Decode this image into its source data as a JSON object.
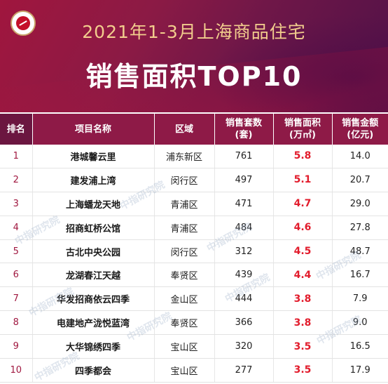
{
  "header": {
    "subtitle": "2021年1-3月上海商品住宅",
    "title": "销售面积TOP10"
  },
  "watermark": "中指研究院",
  "table": {
    "columns": {
      "rank": "排名",
      "project": "项目名称",
      "district": "区域",
      "units_line1": "销售套数",
      "units_line2": "(套)",
      "area_line1": "销售面积",
      "area_line2": "(万㎡)",
      "amount_line1": "销售金额",
      "amount_line2": "(亿元)"
    },
    "rows": [
      {
        "rank": "1",
        "project": "港城馨云里",
        "district": "浦东新区",
        "units": "761",
        "area": "5.8",
        "amount": "14.0"
      },
      {
        "rank": "2",
        "project": "建发浦上湾",
        "district": "闵行区",
        "units": "497",
        "area": "5.1",
        "amount": "20.7"
      },
      {
        "rank": "3",
        "project": "上海蟠龙天地",
        "district": "青浦区",
        "units": "471",
        "area": "4.7",
        "amount": "29.0"
      },
      {
        "rank": "4",
        "project": "招商虹桥公馆",
        "district": "青浦区",
        "units": "484",
        "area": "4.6",
        "amount": "27.8"
      },
      {
        "rank": "5",
        "project": "古北中央公园",
        "district": "闵行区",
        "units": "312",
        "area": "4.5",
        "amount": "48.7"
      },
      {
        "rank": "6",
        "project": "龙湖春江天越",
        "district": "奉贤区",
        "units": "439",
        "area": "4.4",
        "amount": "16.7"
      },
      {
        "rank": "7",
        "project": "华发招商依云四季",
        "district": "金山区",
        "units": "444",
        "area": "3.8",
        "amount": "7.9"
      },
      {
        "rank": "8",
        "project": "电建地产泷悦蓝湾",
        "district": "奉贤区",
        "units": "366",
        "area": "3.8",
        "amount": "9.0"
      },
      {
        "rank": "9",
        "project": "大华锦绣四季",
        "district": "宝山区",
        "units": "320",
        "area": "3.5",
        "amount": "16.5"
      },
      {
        "rank": "10",
        "project": "四季都会",
        "district": "宝山区",
        "units": "277",
        "area": "3.5",
        "amount": "17.9"
      }
    ]
  }
}
